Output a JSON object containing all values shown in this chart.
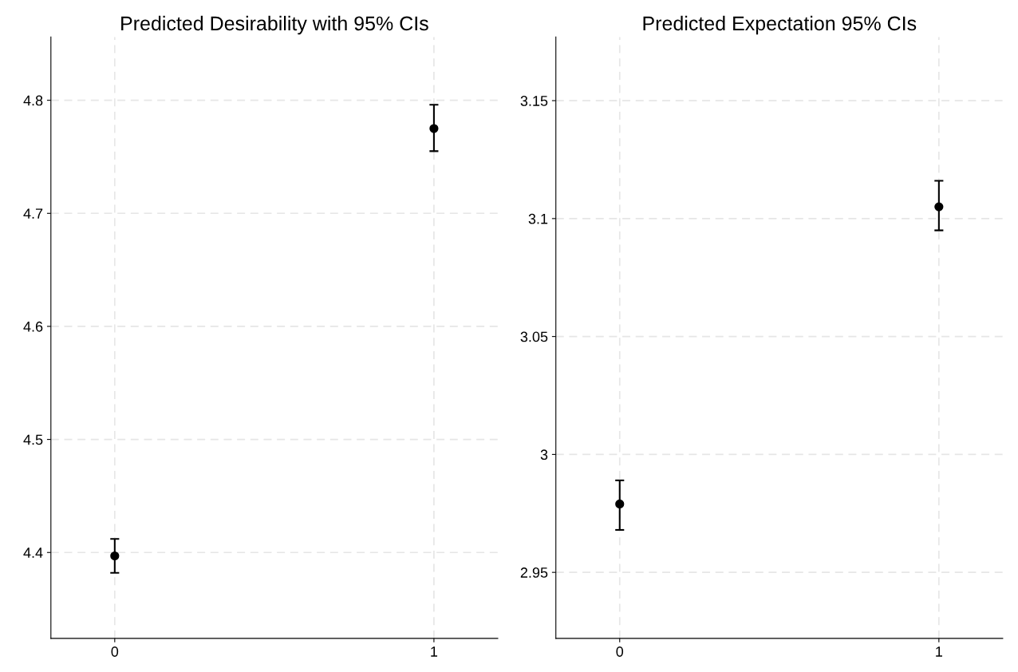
{
  "chart_data": [
    {
      "type": "scatter",
      "title": "Predicted Desirability with 95% CIs",
      "categories": [
        "0",
        "1"
      ],
      "values": [
        4.397,
        4.775
      ],
      "errors": [
        [
          4.382,
          4.412
        ],
        [
          4.755,
          4.796
        ]
      ],
      "color": "#000000",
      "marker": "circle",
      "ylim": [
        4.324,
        4.856
      ],
      "yticks": [
        4.4,
        4.5,
        4.6,
        4.7,
        4.8
      ],
      "grid": true
    },
    {
      "type": "scatter",
      "title": "Predicted Expectation 95% CIs",
      "categories": [
        "0",
        "1"
      ],
      "values": [
        2.979,
        3.105
      ],
      "errors": [
        [
          2.968,
          2.989
        ],
        [
          3.095,
          3.116
        ]
      ],
      "color": "#000000",
      "marker": "circle",
      "ylim": [
        2.922,
        3.177
      ],
      "yticks": [
        2.95,
        3,
        3.05,
        3.1,
        3.15
      ],
      "grid": true
    }
  ]
}
